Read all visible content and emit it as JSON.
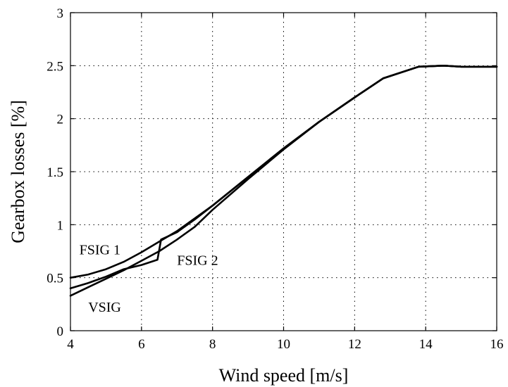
{
  "chart_data": {
    "type": "line",
    "title": "",
    "xlabel": "Wind speed [m/s]",
    "ylabel": "Gearbox losses [%]",
    "xlim": [
      4,
      16
    ],
    "ylim": [
      0,
      3
    ],
    "xticks": [
      4,
      6,
      8,
      10,
      12,
      14,
      16
    ],
    "yticks": [
      0,
      0.5,
      1,
      1.5,
      2,
      2.5,
      3
    ],
    "xtick_labels": [
      "4",
      "6",
      "8",
      "10",
      "12",
      "14",
      "16"
    ],
    "ytick_labels": [
      "0",
      "0.5",
      "1",
      "1.5",
      "2",
      "2.5",
      "3"
    ],
    "grid": true,
    "legend": "none",
    "series": [
      {
        "name": "FSIG 1",
        "x": [
          4,
          4.5,
          5,
          5.5,
          6,
          6.5,
          7,
          7.5,
          8,
          9,
          10,
          11,
          12,
          12.8,
          13.8,
          14.5,
          15,
          16
        ],
        "y": [
          0.5,
          0.53,
          0.58,
          0.65,
          0.74,
          0.84,
          0.94,
          1.06,
          1.18,
          1.45,
          1.72,
          1.97,
          2.2,
          2.38,
          2.49,
          2.5,
          2.49,
          2.49
        ]
      },
      {
        "name": "FSIG 2",
        "x": [
          4,
          4.5,
          5,
          5.5,
          6,
          6.45,
          6.55,
          7,
          7.5,
          8,
          9,
          10,
          11,
          12,
          12.8,
          13.8,
          14.5,
          15,
          16
        ],
        "y": [
          0.4,
          0.45,
          0.51,
          0.58,
          0.62,
          0.67,
          0.86,
          0.93,
          1.05,
          1.18,
          1.45,
          1.72,
          1.97,
          2.2,
          2.38,
          2.49,
          2.5,
          2.49,
          2.49
        ]
      },
      {
        "name": "VSIG",
        "x": [
          4,
          4.5,
          5,
          5.5,
          6,
          6.5,
          7,
          7.5,
          8,
          9,
          10,
          11,
          12,
          12.8,
          13.8,
          14.5,
          15,
          16
        ],
        "y": [
          0.33,
          0.41,
          0.49,
          0.57,
          0.66,
          0.75,
          0.86,
          0.98,
          1.14,
          1.43,
          1.71,
          1.97,
          2.2,
          2.38,
          2.49,
          2.5,
          2.49,
          2.49
        ]
      }
    ],
    "annotations": [
      {
        "text": "FSIG 1",
        "x": 4.25,
        "y": 0.72
      },
      {
        "text": "FSIG 2",
        "x": 7.0,
        "y": 0.62
      },
      {
        "text": "VSIG",
        "x": 4.5,
        "y": 0.18
      }
    ]
  }
}
